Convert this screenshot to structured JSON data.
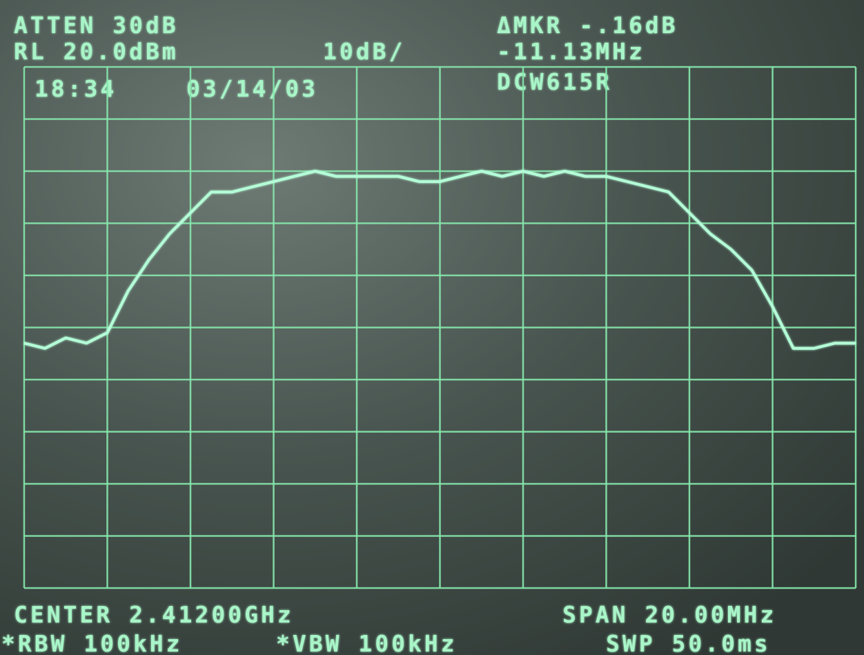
{
  "chart_data": {
    "type": "line",
    "annotations": {
      "atten": "ATTEN 30dB",
      "ref_level": "RL 20.0dBm",
      "scale": "10dB/",
      "marker_delta": "ΔMKR -.16dB",
      "marker_freq": "-11.13MHz",
      "label": "DCW615R",
      "time": "18:34",
      "date": "03/14/03",
      "center": "CENTER 2.41200GHz",
      "span": "SPAN 20.00MHz",
      "rbw": "*RBW 100kHz",
      "vbw": "*VBW 100kHz",
      "sweep": "SWP 50.0ms"
    },
    "x": [
      2402,
      2402.5,
      2403,
      2403.5,
      2404,
      2404.5,
      2405,
      2405.5,
      2406,
      2406.5,
      2407,
      2407.5,
      2408,
      2408.5,
      2409,
      2409.5,
      2410,
      2410.5,
      2411,
      2411.5,
      2412,
      2412.5,
      2413,
      2413.5,
      2414,
      2414.5,
      2415,
      2415.5,
      2416,
      2416.5,
      2417,
      2417.5,
      2418,
      2418.5,
      2419,
      2419.5,
      2420,
      2420.5,
      2421,
      2421.5,
      2422
    ],
    "values": [
      -33,
      -34,
      -32,
      -33,
      -31,
      -23,
      -17,
      -12,
      -8,
      -4,
      -4,
      -3,
      -2,
      -1,
      0,
      -1,
      -1,
      -1,
      -1,
      -2,
      -2,
      -1,
      0,
      -1,
      0,
      -1,
      0,
      -1,
      -1,
      -2,
      -3,
      -4,
      -8,
      -12,
      -15,
      -19,
      -26,
      -34,
      -34,
      -33,
      -33
    ],
    "color": "#b4ffd8",
    "xlim": [
      2402,
      2422
    ],
    "ylim": [
      -80,
      20
    ],
    "xticks": [
      2402,
      2404,
      2406,
      2408,
      2410,
      2412,
      2414,
      2416,
      2418,
      2420,
      2422
    ],
    "yticks": [
      -80,
      -70,
      -60,
      -50,
      -40,
      -30,
      -20,
      -10,
      0,
      10,
      20
    ],
    "grid": true
  }
}
